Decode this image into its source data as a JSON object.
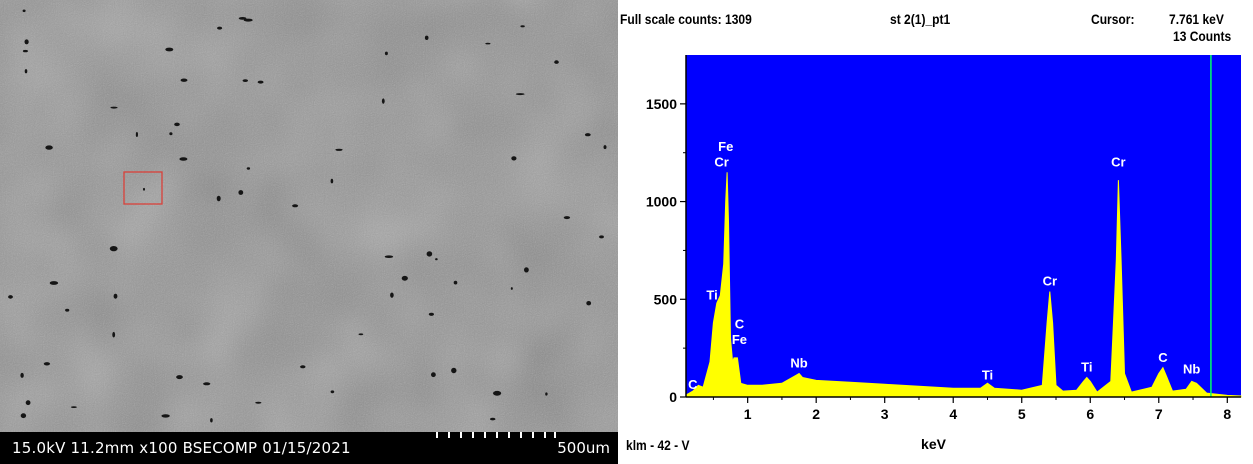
{
  "sem": {
    "info_line": "15.0kV 11.2mm x100 BSECOMP  01/15/2021",
    "scale_bar_label": "500um",
    "selection_color": "#d9413a"
  },
  "eds": {
    "full_scale": "Full scale counts: 1309",
    "spectrum_name": "st 2(1)_pt1",
    "cursor_label": "Cursor:",
    "cursor_value": "7.761 keV",
    "cursor_counts": "13 Counts",
    "footer_label": "klm - 42 - V",
    "plot_background": "#0000ff",
    "spectrum_color": "#ffff00",
    "cursor_color": "#00ff66"
  },
  "chart_data": {
    "type": "area",
    "xlabel": "keV",
    "ylabel": "",
    "xlim": [
      0.1,
      8.2
    ],
    "ylim": [
      0,
      1750
    ],
    "x_ticks": [
      1,
      2,
      3,
      4,
      5,
      6,
      7,
      8
    ],
    "y_ticks": [
      0,
      500,
      1000,
      1500
    ],
    "cursor_kev": 7.761,
    "series": [
      {
        "x": [
          0.1,
          0.2,
          0.28,
          0.35,
          0.45,
          0.5,
          0.55,
          0.6,
          0.65,
          0.68,
          0.7,
          0.72,
          0.75,
          0.78,
          0.8,
          0.85,
          0.9,
          1.0,
          1.2,
          1.5,
          1.7,
          1.75,
          1.8,
          2.0,
          2.5,
          3.0,
          3.5,
          4.0,
          4.4,
          4.5,
          4.6,
          5.0,
          5.3,
          5.37,
          5.41,
          5.45,
          5.5,
          5.6,
          5.8,
          5.9,
          5.95,
          6.0,
          6.1,
          6.3,
          6.38,
          6.41,
          6.45,
          6.5,
          6.6,
          6.9,
          7.0,
          7.06,
          7.12,
          7.2,
          7.4,
          7.48,
          7.55,
          7.7,
          8.0,
          8.2
        ],
        "y": [
          10,
          30,
          60,
          50,
          180,
          380,
          480,
          520,
          680,
          1000,
          1150,
          900,
          300,
          180,
          200,
          200,
          70,
          60,
          60,
          70,
          110,
          120,
          100,
          85,
          75,
          65,
          55,
          45,
          45,
          70,
          45,
          35,
          60,
          380,
          540,
          380,
          60,
          30,
          35,
          80,
          100,
          80,
          25,
          80,
          700,
          1110,
          700,
          120,
          25,
          50,
          120,
          150,
          100,
          30,
          40,
          80,
          70,
          20,
          8,
          5
        ]
      }
    ],
    "peak_labels": [
      {
        "text": "C",
        "x": 0.2,
        "y": 40
      },
      {
        "text": "Ti",
        "x": 0.48,
        "y": 500
      },
      {
        "text": "Cr",
        "x": 0.62,
        "y": 1180
      },
      {
        "text": "Fe",
        "x": 0.68,
        "y": 1260
      },
      {
        "text": "C",
        "x": 0.88,
        "y": 350
      },
      {
        "text": "Fe",
        "x": 0.88,
        "y": 270
      },
      {
        "text": "Nb",
        "x": 1.75,
        "y": 150
      },
      {
        "text": "Ti",
        "x": 4.5,
        "y": 90
      },
      {
        "text": "Cr",
        "x": 5.41,
        "y": 570
      },
      {
        "text": "Ti",
        "x": 5.95,
        "y": 130
      },
      {
        "text": "Cr",
        "x": 6.41,
        "y": 1180
      },
      {
        "text": "C",
        "x": 7.06,
        "y": 180
      },
      {
        "text": "Nb",
        "x": 7.48,
        "y": 120
      }
    ]
  }
}
